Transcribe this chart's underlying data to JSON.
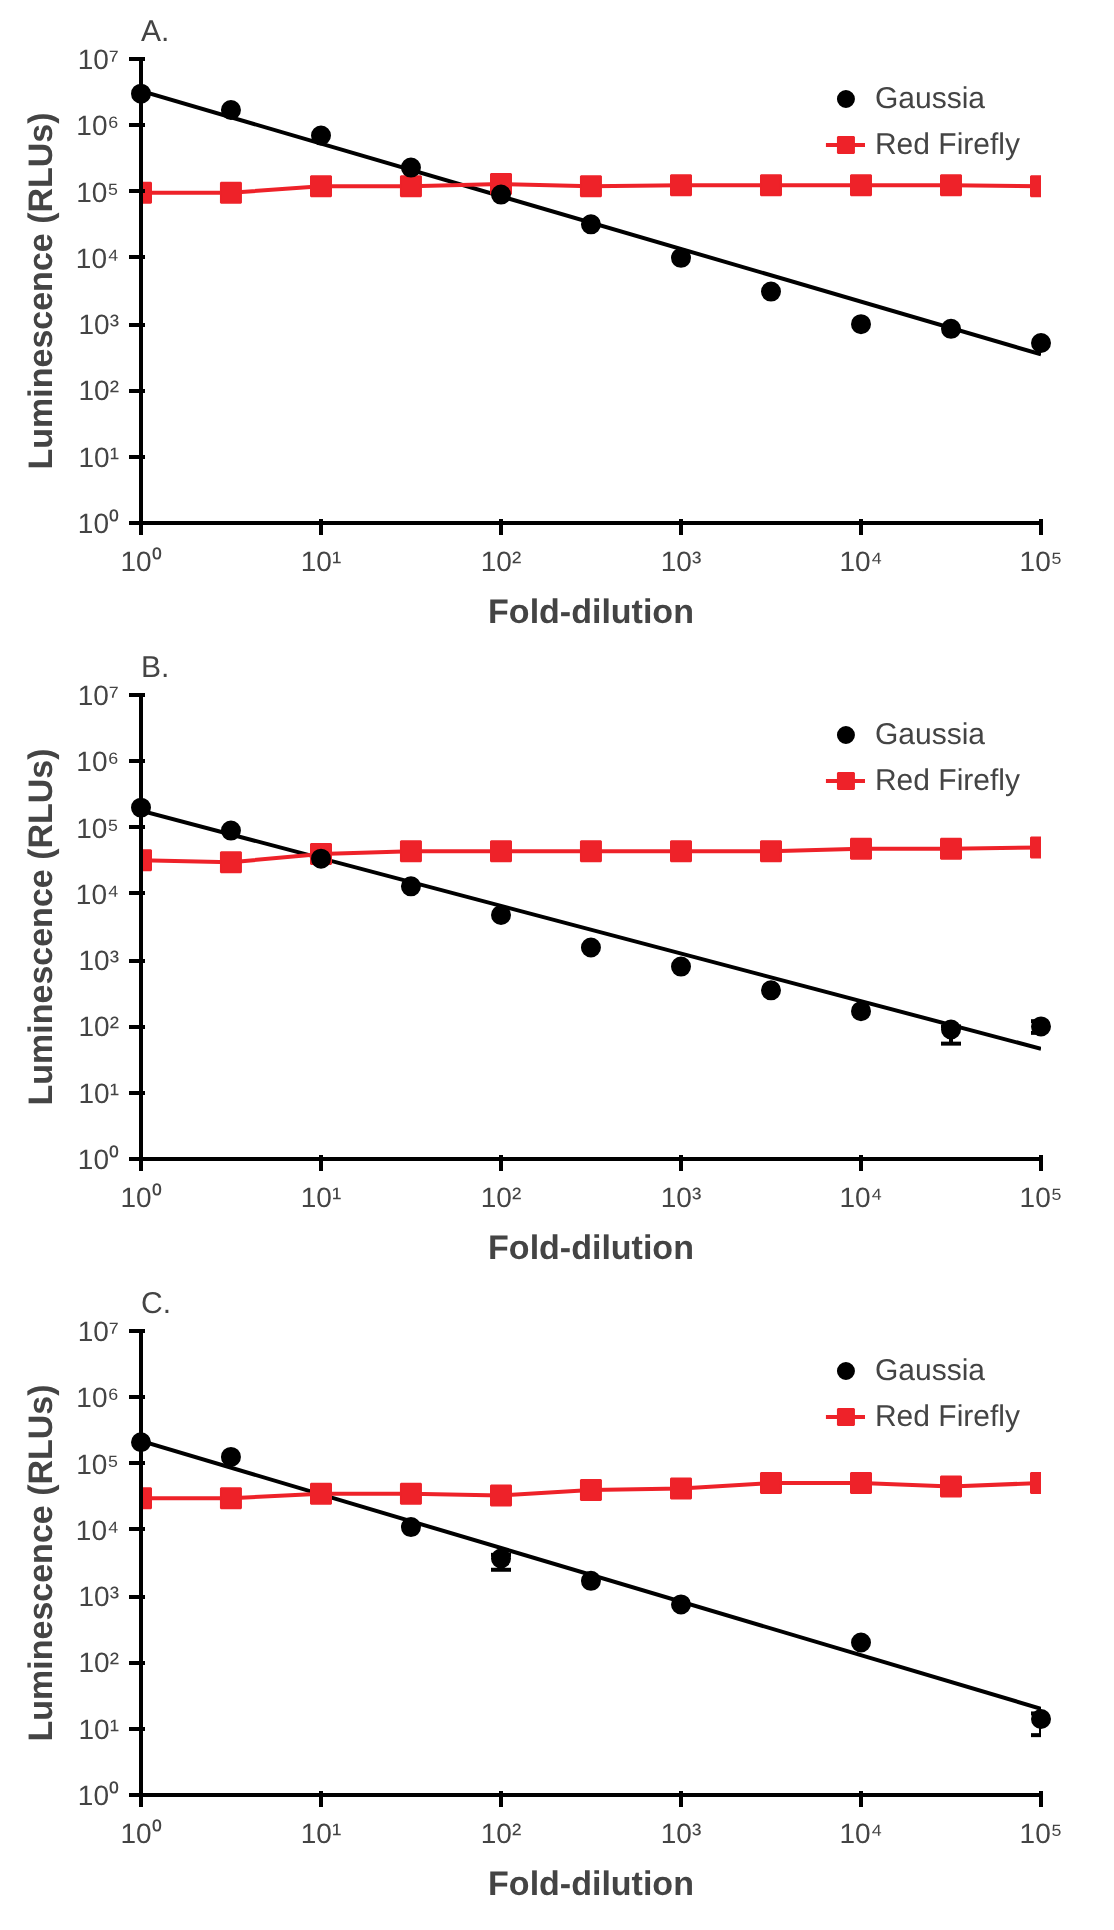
{
  "chart_data": [
    {
      "type": "line",
      "title": "A.",
      "xlabel": "Fold-dilution",
      "ylabel": "Luminescence (RLUs)",
      "log": "xy",
      "grid": false,
      "legend": "top right",
      "x": [
        1,
        3.16,
        10,
        31.6,
        100,
        316,
        1000,
        3162,
        10000,
        31623,
        100000
      ],
      "xlim": [
        1,
        100000
      ],
      "xticks": [
        {
          "value": 1,
          "label": "10⁰"
        },
        {
          "value": 10,
          "label": "10¹"
        },
        {
          "value": 100,
          "label": "10²"
        },
        {
          "value": 1000,
          "label": "10³"
        },
        {
          "value": 10000,
          "label": "10⁴"
        },
        {
          "value": 100000,
          "label": "10⁵"
        }
      ],
      "ylim": [
        1,
        10000000
      ],
      "yticks": [
        {
          "value": 1,
          "label": "10⁰"
        },
        {
          "value": 10,
          "label": "10¹"
        },
        {
          "value": 100,
          "label": "10²"
        },
        {
          "value": 1000,
          "label": "10³"
        },
        {
          "value": 10000,
          "label": "10⁴"
        },
        {
          "value": 100000,
          "label": "10⁵"
        },
        {
          "value": 1000000,
          "label": "10⁶"
        },
        {
          "value": 10000000,
          "label": "10⁷"
        }
      ],
      "series": [
        {
          "name": "Gaussia",
          "type": "scatter",
          "marker": "circle",
          "color": "#000000",
          "values": [
            3000000,
            1700000,
            700000,
            230000,
            90000,
            32000,
            10000,
            3100,
            1000,
            850,
            520
          ]
        },
        {
          "type": "line",
          "marker": "none",
          "color": "#000000",
          "x": [
            1,
            100000
          ],
          "values": [
            3300000,
            350
          ]
        },
        {
          "name": "Red Firefly",
          "marker": "square",
          "color": "#ee2229",
          "values": [
            96000,
            96000,
            120000,
            120000,
            130000,
            120000,
            125000,
            125000,
            125000,
            125000,
            120000
          ]
        }
      ]
    },
    {
      "type": "line",
      "title": "B.",
      "xlabel": "Fold-dilution",
      "ylabel": "Luminescence (RLUs)",
      "log": "xy",
      "grid": false,
      "legend": "top right",
      "x": [
        1,
        3.16,
        10,
        31.6,
        100,
        316,
        1000,
        3162,
        10000,
        31623,
        100000
      ],
      "xlim": [
        1,
        100000
      ],
      "xticks": [
        {
          "value": 1,
          "label": "10⁰"
        },
        {
          "value": 10,
          "label": "10¹"
        },
        {
          "value": 100,
          "label": "10²"
        },
        {
          "value": 1000,
          "label": "10³"
        },
        {
          "value": 10000,
          "label": "10⁴"
        },
        {
          "value": 100000,
          "label": "10⁵"
        }
      ],
      "ylim": [
        1,
        10000000
      ],
      "yticks": [
        {
          "value": 1,
          "label": "10⁰"
        },
        {
          "value": 10,
          "label": "10¹"
        },
        {
          "value": 100,
          "label": "10²"
        },
        {
          "value": 1000,
          "label": "10³"
        },
        {
          "value": 10000,
          "label": "10⁴"
        },
        {
          "value": 100000,
          "label": "10⁵"
        },
        {
          "value": 1000000,
          "label": "10⁶"
        },
        {
          "value": 10000000,
          "label": "10⁷"
        }
      ],
      "series": [
        {
          "name": "Gaussia",
          "type": "scatter",
          "marker": "circle",
          "color": "#000000",
          "values": [
            200000,
            90000,
            34000,
            13000,
            4800,
            1550,
            800,
            350,
            170,
            90,
            100
          ],
          "errors": [
            null,
            null,
            null,
            null,
            null,
            null,
            null,
            null,
            null,
            [
              55,
              100
            ],
            [
              80,
              120
            ]
          ]
        },
        {
          "type": "line",
          "marker": "none",
          "color": "#000000",
          "x": [
            1,
            100000
          ],
          "values": [
            180000,
            46
          ]
        },
        {
          "name": "Red Firefly",
          "marker": "square",
          "color": "#ee2229",
          "values": [
            32000,
            30000,
            40000,
            44000,
            44000,
            44000,
            44000,
            44000,
            48000,
            48000,
            50000
          ]
        }
      ]
    },
    {
      "type": "line",
      "title": "C.",
      "xlabel": "Fold-dilution",
      "ylabel": "Luminescence (RLUs)",
      "log": "xy",
      "grid": false,
      "legend": "top right",
      "x": [
        1,
        3.16,
        10,
        31.6,
        100,
        316,
        1000,
        3162,
        10000,
        31623,
        100000
      ],
      "xlim": [
        1,
        100000
      ],
      "xticks": [
        {
          "value": 1,
          "label": "10⁰"
        },
        {
          "value": 10,
          "label": "10¹"
        },
        {
          "value": 100,
          "label": "10²"
        },
        {
          "value": 1000,
          "label": "10³"
        },
        {
          "value": 10000,
          "label": "10⁴"
        },
        {
          "value": 100000,
          "label": "10⁵"
        }
      ],
      "ylim": [
        1,
        10000000
      ],
      "yticks": [
        {
          "value": 1,
          "label": "10⁰"
        },
        {
          "value": 10,
          "label": "10¹"
        },
        {
          "value": 100,
          "label": "10²"
        },
        {
          "value": 1000,
          "label": "10³"
        },
        {
          "value": 10000,
          "label": "10⁴"
        },
        {
          "value": 100000,
          "label": "10⁵"
        },
        {
          "value": 1000000,
          "label": "10⁶"
        },
        {
          "value": 10000000,
          "label": "10⁷"
        }
      ],
      "series": [
        {
          "name": "Gaussia",
          "type": "scatter",
          "marker": "circle",
          "color": "#000000",
          "x": [
            1,
            3.16,
            10,
            31.6,
            100,
            316,
            1000,
            10000,
            100000
          ],
          "values": [
            210000,
            126000,
            null,
            11000,
            3700,
            1700,
            750,
            200,
            14
          ],
          "errors": [
            null,
            null,
            null,
            null,
            [
              2500,
              4200
            ],
            null,
            null,
            null,
            [
              8,
              17
            ]
          ]
        },
        {
          "type": "line",
          "marker": "none",
          "color": "#000000",
          "x": [
            1,
            100000
          ],
          "values": [
            220000,
            20
          ]
        },
        {
          "name": "Red Firefly",
          "marker": "square",
          "color": "#ee2229",
          "values": [
            30000,
            30000,
            35000,
            35000,
            33000,
            40000,
            42000,
            51000,
            51000,
            45000,
            51000
          ]
        }
      ]
    }
  ]
}
